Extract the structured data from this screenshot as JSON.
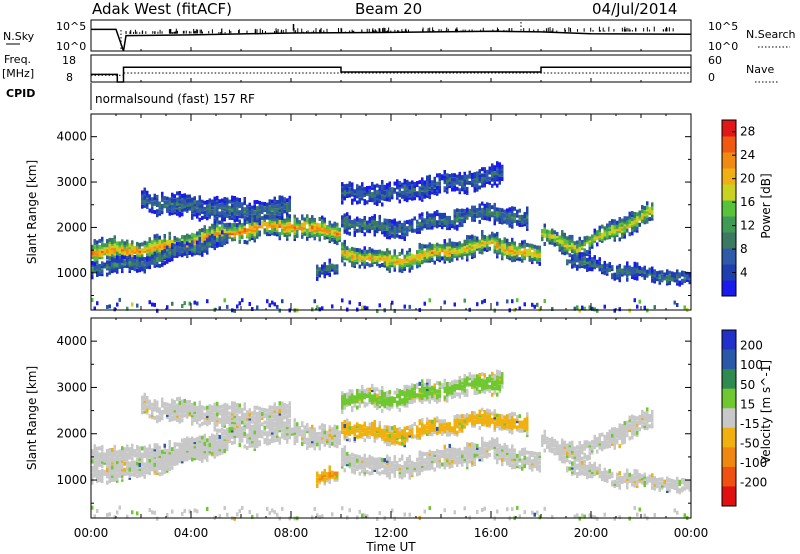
{
  "header": {
    "station": "Adak West (fitACF)",
    "beam": "Beam 20",
    "date": "04/Jul/2014"
  },
  "top_panels": {
    "nsky_label": "N.Sky",
    "nsearch_label": "N.Search",
    "noise_ticks": [
      "10^5",
      "10^0"
    ],
    "freq_label_1": "Freq.",
    "freq_label_2": "[MHz]",
    "freq_ticks": [
      "18",
      "8"
    ],
    "nave_label": "Nave",
    "nave_ticks": [
      "60",
      "0"
    ],
    "cpid_label": "CPID",
    "cpid_text": "normalsound (fast) 157 RF"
  },
  "colors": {
    "power": [
      "#1a1aee",
      "#1f3fb0",
      "#2e5aa8",
      "#3b7a62",
      "#3f9a55",
      "#58c23a",
      "#c9d21e",
      "#f0b014",
      "#f08a10",
      "#ef5a10",
      "#e01818"
    ],
    "velocity": [
      "#2030c8",
      "#2a58a8",
      "#2f8a50",
      "#70c830",
      "#c8c8c8",
      "#f0b010",
      "#f08810",
      "#f05010",
      "#e01010"
    ]
  },
  "chart_data": [
    {
      "type": "line",
      "title": "",
      "xlabel": "",
      "ylabel": "N.Sky",
      "x_unit": "hours UT",
      "xlim": [
        0,
        24
      ],
      "yscale": "log",
      "ylim": [
        1,
        100000
      ],
      "series": [
        {
          "name": "N.Sky",
          "x": [
            0,
            1,
            1.3,
            1.4,
            4,
            8,
            12,
            16,
            18,
            20,
            24
          ],
          "y": [
            3000,
            3000,
            1,
            300,
            400,
            800,
            1000,
            1500,
            1200,
            600,
            500
          ]
        }
      ]
    },
    {
      "type": "line",
      "title": "",
      "ylabel_left": "Freq. [MHz]",
      "ylabel_right": "Nave",
      "xlim": [
        0,
        24
      ],
      "ylim_left": [
        8,
        18
      ],
      "ylim_right": [
        0,
        60
      ],
      "series": [
        {
          "name": "Freq",
          "x": [
            0,
            1.05,
            1.05,
            1.3,
            1.3,
            10,
            10,
            18,
            18,
            24
          ],
          "y": [
            10.8,
            10.8,
            8,
            8,
            13.5,
            13.5,
            11.7,
            11.7,
            13.5,
            13.5
          ]
        },
        {
          "name": "Nave",
          "x": [
            0,
            1.3,
            1.3,
            24
          ],
          "y": [
            15,
            15,
            20,
            20
          ]
        }
      ]
    },
    {
      "type": "heatmap",
      "title": "",
      "ylabel": "Slant Range [km]",
      "colorbar_label": "Power [dB]",
      "xlim": [
        0,
        24
      ],
      "ylim": [
        180,
        4500
      ],
      "yticks": [
        1000,
        2000,
        3000,
        4000
      ],
      "colorbar_ticks": [
        4,
        8,
        12,
        16,
        20,
        24,
        28
      ],
      "colorbar_range": [
        0,
        30
      ],
      "x_tick_labels": [
        "00:00",
        "04:00",
        "08:00",
        "12:00",
        "16:00",
        "20:00",
        "00:00"
      ],
      "bands": [
        {
          "x": [
            0,
            3,
            6,
            8,
            9,
            10
          ],
          "y": [
            1500,
            1600,
            2000,
            2100,
            2000,
            1950
          ],
          "width": 220,
          "peak": 24
        },
        {
          "x": [
            0,
            2,
            4,
            5.5
          ],
          "y": [
            1150,
            1250,
            1600,
            1800
          ],
          "width": 140,
          "peak": 10
        },
        {
          "x": [
            2,
            4,
            6,
            8
          ],
          "y": [
            2650,
            2500,
            2400,
            2450
          ],
          "width": 220,
          "peak": 9
        },
        {
          "x": [
            10,
            12,
            14,
            16,
            18
          ],
          "y": [
            1500,
            1300,
            1500,
            1700,
            1400
          ],
          "width": 200,
          "peak": 22
        },
        {
          "x": [
            10,
            12,
            14,
            16,
            17.5
          ],
          "y": [
            2200,
            2000,
            2200,
            2400,
            2200
          ],
          "width": 180,
          "peak": 10
        },
        {
          "x": [
            10,
            12,
            14,
            16.5
          ],
          "y": [
            2800,
            2800,
            3000,
            3200
          ],
          "width": 200,
          "peak": 8
        },
        {
          "x": [
            18,
            19.5,
            21,
            22.5
          ],
          "y": [
            1900,
            1600,
            2000,
            2400
          ],
          "width": 200,
          "peak": 20
        },
        {
          "x": [
            19,
            21,
            24
          ],
          "y": [
            1350,
            1100,
            900
          ],
          "width": 140,
          "peak": 9
        },
        {
          "x": [
            9,
            9.9
          ],
          "y": [
            1100,
            1150
          ],
          "width": 140,
          "peak": 9
        }
      ]
    },
    {
      "type": "heatmap",
      "title": "",
      "xlabel": "Time UT",
      "ylabel": "Slant Range [km]",
      "colorbar_label": "Velocity [m s^-1]",
      "xlim": [
        0,
        24
      ],
      "ylim": [
        180,
        4500
      ],
      "yticks": [
        1000,
        2000,
        3000,
        4000
      ],
      "colorbar_ticks": [
        200,
        100,
        50,
        15,
        -15,
        -50,
        -100,
        -200
      ],
      "x_tick_labels": [
        "00:00",
        "04:00",
        "08:00",
        "12:00",
        "16:00",
        "20:00",
        "00:00"
      ],
      "bands": [
        {
          "x": [
            0,
            3,
            6,
            8,
            9,
            10
          ],
          "y": [
            1500,
            1600,
            2000,
            2100,
            2000,
            1950
          ],
          "width": 220,
          "peak": -10
        },
        {
          "x": [
            0,
            2,
            4,
            5.5
          ],
          "y": [
            1150,
            1250,
            1600,
            1800
          ],
          "width": 140,
          "peak": -10
        },
        {
          "x": [
            2,
            4,
            6,
            8
          ],
          "y": [
            2650,
            2500,
            2400,
            2450
          ],
          "width": 220,
          "peak": -10
        },
        {
          "x": [
            10,
            12,
            14,
            16,
            18
          ],
          "y": [
            1500,
            1300,
            1500,
            1700,
            1400
          ],
          "width": 200,
          "peak": -10
        },
        {
          "x": [
            10,
            12,
            14,
            16,
            17.5
          ],
          "y": [
            2200,
            2000,
            2200,
            2400,
            2200
          ],
          "width": 180,
          "peak": -40
        },
        {
          "x": [
            10,
            12,
            14,
            16.5
          ],
          "y": [
            2800,
            2800,
            3000,
            3200
          ],
          "width": 200,
          "peak": 30
        },
        {
          "x": [
            18,
            19.5,
            21,
            22.5
          ],
          "y": [
            1900,
            1600,
            2000,
            2400
          ],
          "width": 200,
          "peak": -10
        },
        {
          "x": [
            19,
            21,
            24
          ],
          "y": [
            1350,
            1100,
            900
          ],
          "width": 140,
          "peak": -10
        },
        {
          "x": [
            9,
            9.9
          ],
          "y": [
            1100,
            1150
          ],
          "width": 140,
          "peak": -60
        }
      ]
    }
  ]
}
